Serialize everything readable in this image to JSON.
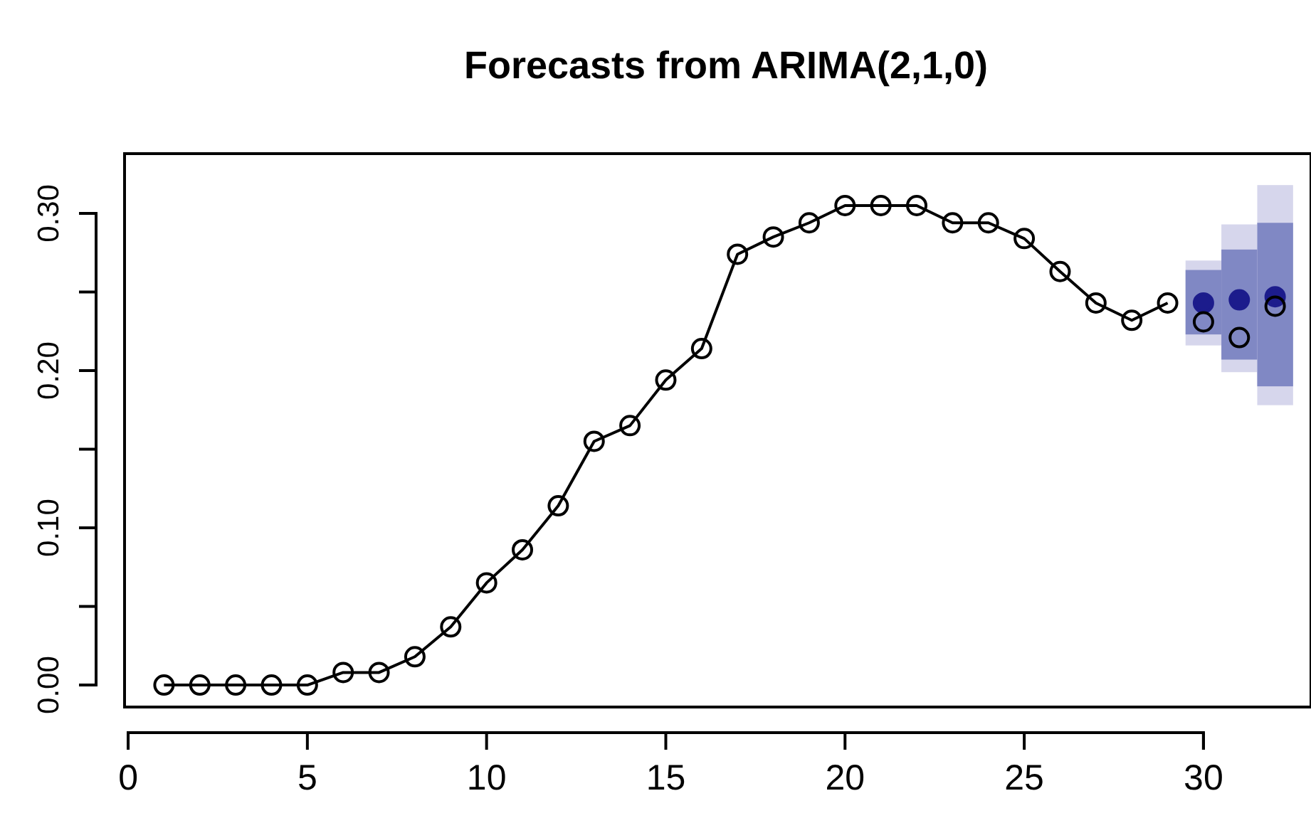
{
  "chart_data": {
    "type": "line",
    "title": "Forecasts from ARIMA(2,1,0)",
    "xlim": [
      -0.1,
      33
    ],
    "xticks": [
      0,
      5,
      10,
      15,
      20,
      25,
      30
    ],
    "ylim": [
      -0.014,
      0.338
    ],
    "yticks": [
      {
        "value": 0,
        "label": "0.00"
      },
      {
        "value": 0.1,
        "label": "0.10"
      },
      {
        "value": 0.2,
        "label": "0.20"
      },
      {
        "value": 0.3,
        "label": "0.30"
      }
    ],
    "grid": false,
    "series": [
      {
        "type": "bar",
        "color": "#d6d6ec",
        "x": [
          30,
          31,
          32
        ],
        "base": [
          0.216,
          0.199,
          0.178
        ],
        "values": [
          0.054,
          0.094,
          0.14
        ]
      },
      {
        "type": "bar",
        "color": "#8088c4",
        "x": [
          30,
          31,
          32
        ],
        "base": [
          0.223,
          0.207,
          0.19
        ],
        "values": [
          0.041,
          0.07,
          0.104
        ]
      },
      {
        "type": "scatter",
        "color": "#1c1c8c",
        "marker": "circle",
        "x": [
          30,
          31,
          32
        ],
        "values": [
          0.243,
          0.245,
          0.247
        ]
      },
      {
        "color": "#000000",
        "marker": "circle",
        "line_style": "solid",
        "x": [
          1,
          2,
          3,
          4,
          5,
          6,
          7,
          8,
          9,
          10,
          11,
          12,
          13,
          14,
          15,
          16,
          17,
          18,
          19,
          20,
          21,
          22,
          23,
          24,
          25,
          26,
          27,
          28,
          29
        ],
        "values": [
          0,
          0,
          0,
          0,
          0,
          0.008,
          0.008,
          0.018,
          0.037,
          0.065,
          0.086,
          0.114,
          0.155,
          0.165,
          0.194,
          0.214,
          0.274,
          0.285,
          0.294,
          0.305,
          0.305,
          0.305,
          0.294,
          0.294,
          0.284,
          0.263,
          0.243,
          0.232,
          0.243
        ]
      },
      {
        "type": "scatter",
        "color": "#000000",
        "marker": "circle",
        "x": [
          30,
          31,
          32
        ],
        "values": [
          0.231,
          0.221,
          0.241
        ]
      }
    ]
  }
}
